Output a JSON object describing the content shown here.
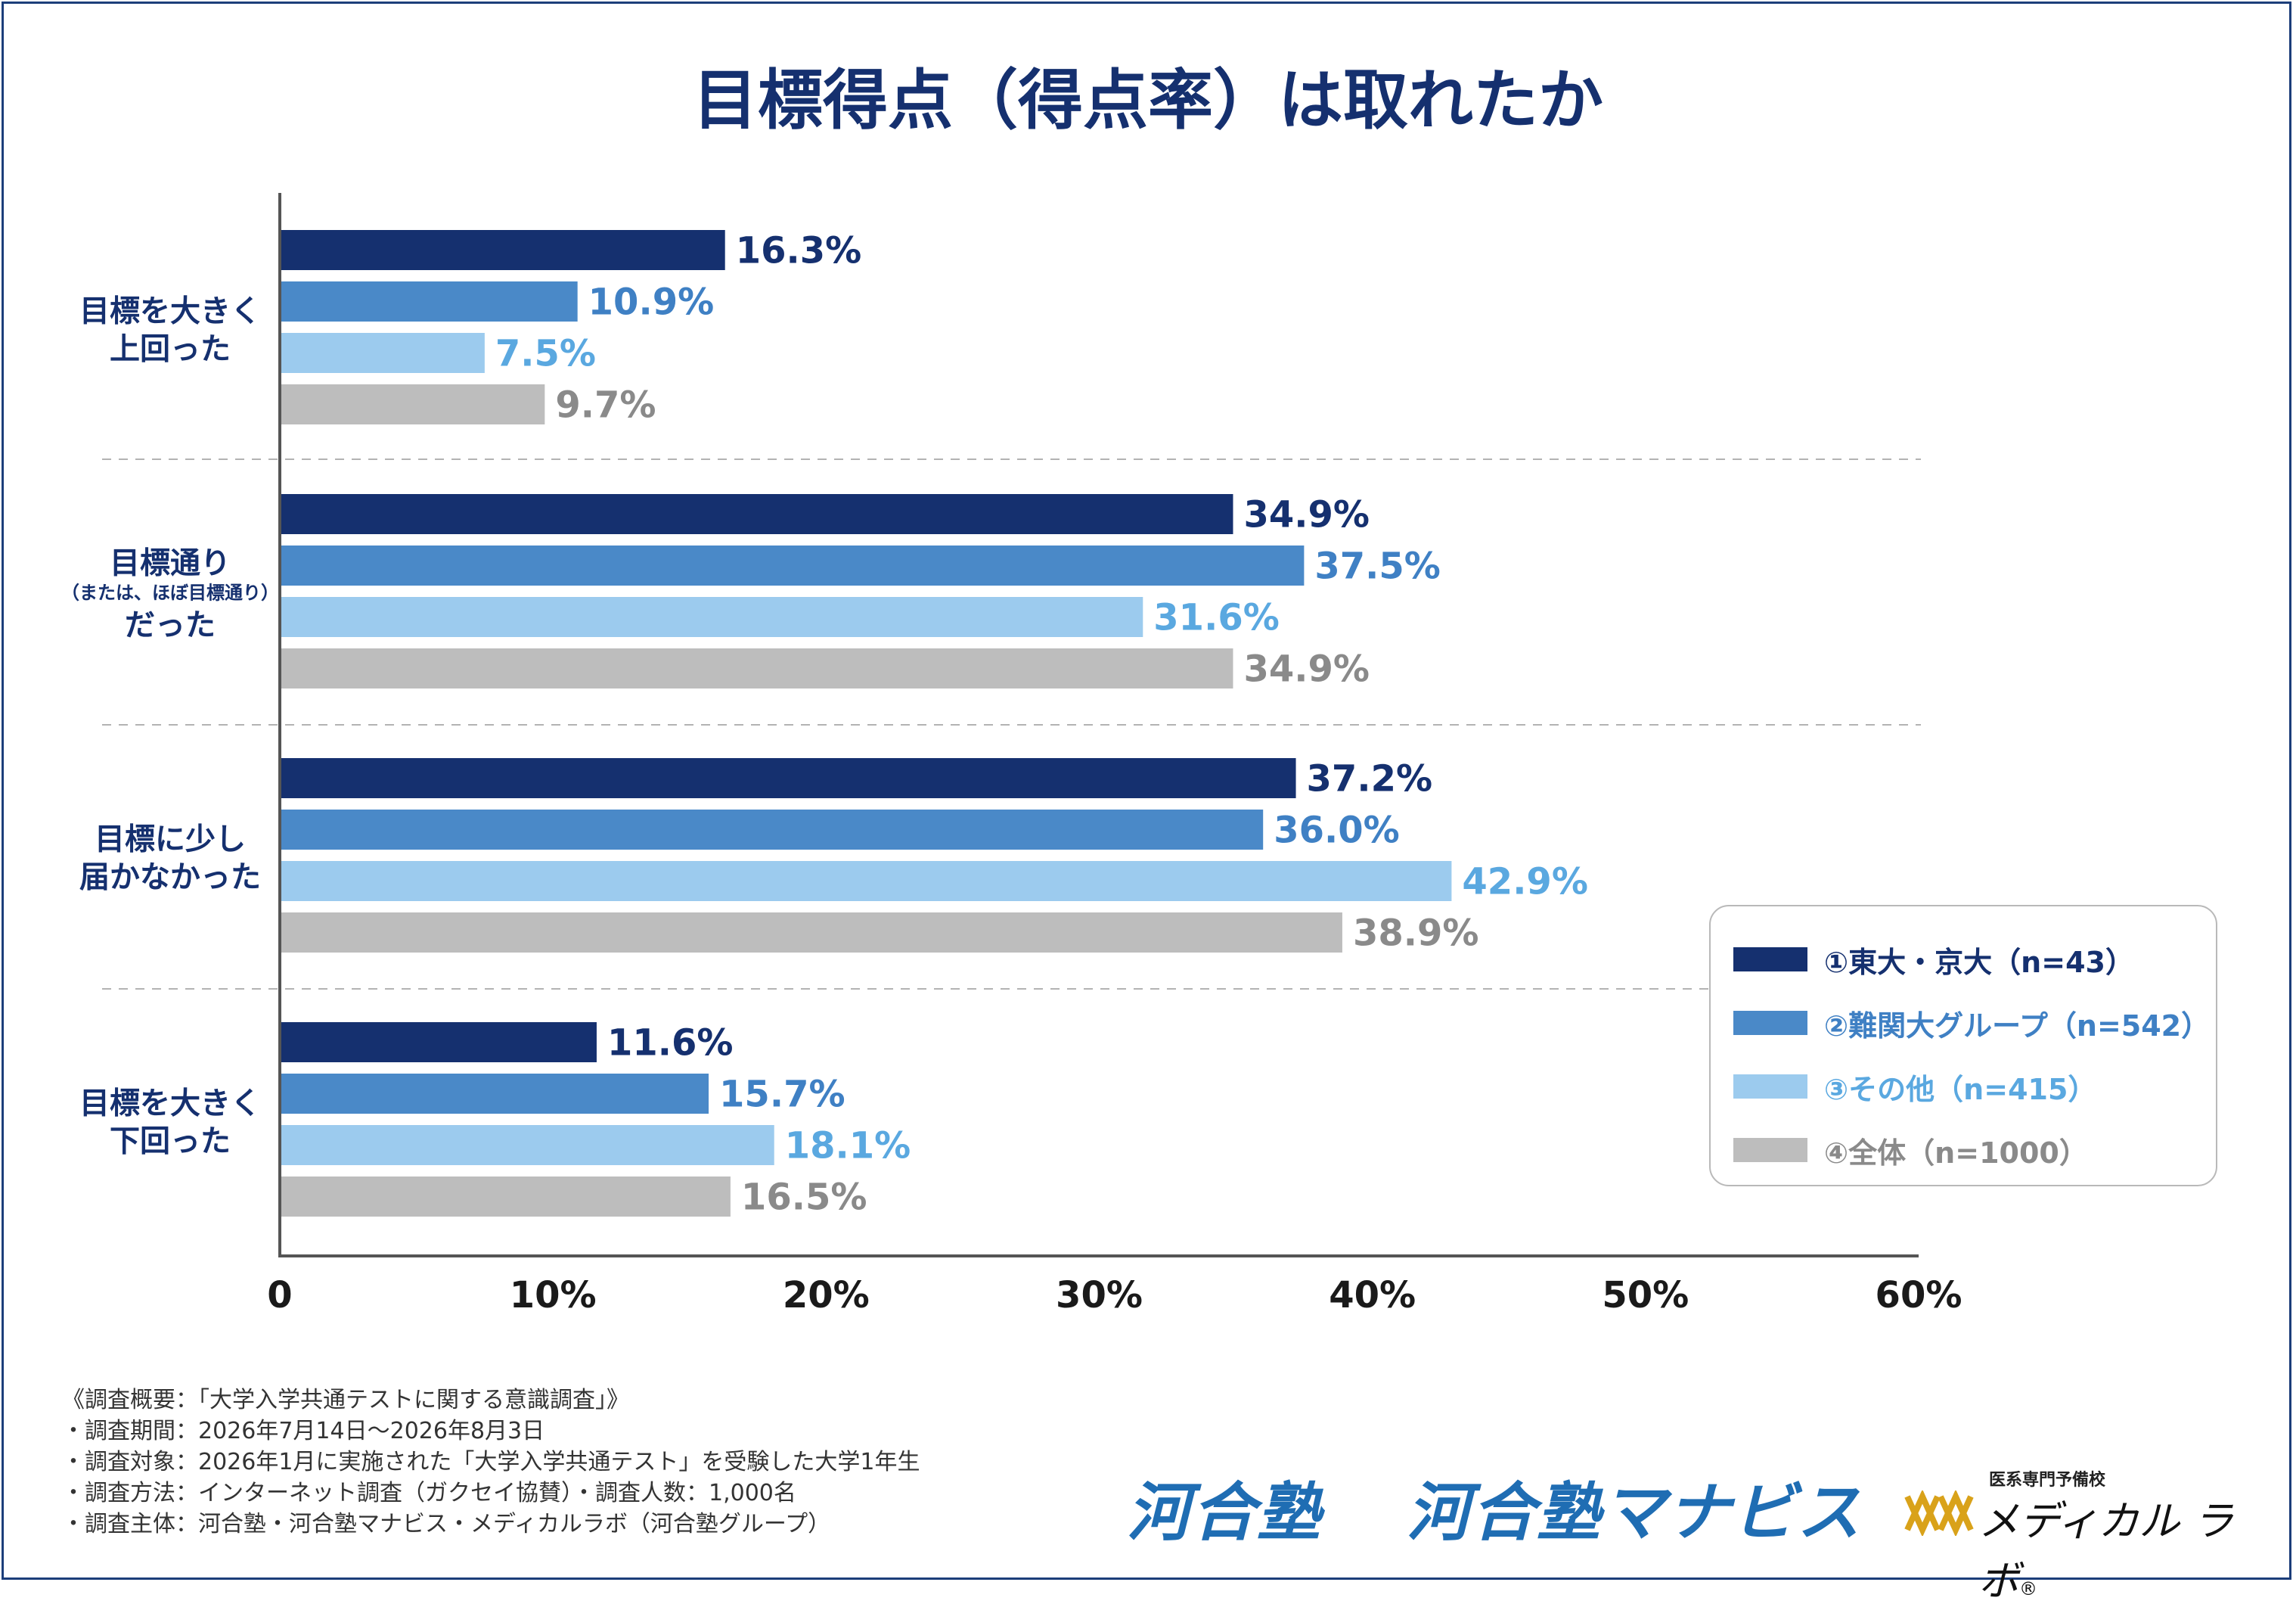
{
  "title": "目標得点（得点率）は取れたか",
  "chart_data": {
    "type": "bar",
    "orientation": "horizontal",
    "categories": [
      [
        "目標を大きく",
        "上回った"
      ],
      [
        "目標通り",
        "（または、ほぼ目標通り）",
        "だった"
      ],
      [
        "目標に少し",
        "届かなかった"
      ],
      [
        "目標を大きく",
        "下回った"
      ]
    ],
    "series": [
      {
        "name": "①東大・京大（n=43）",
        "values": [
          16.3,
          34.9,
          37.2,
          11.6
        ],
        "color": "#15306f"
      },
      {
        "name": "②難関大グループ（n=542）",
        "values": [
          10.9,
          37.5,
          36.0,
          15.7
        ],
        "color": "#4a89c8"
      },
      {
        "name": "③その他（n=415）",
        "values": [
          7.5,
          31.6,
          42.9,
          18.1
        ],
        "color": "#9ccbee"
      },
      {
        "name": "④全体（n=1000）",
        "values": [
          9.7,
          34.9,
          38.9,
          16.5
        ],
        "color": "#bdbdbd"
      }
    ],
    "label_colors": [
      "#15306f",
      "#3f80c4",
      "#5aa8e0",
      "#8a8a8a"
    ],
    "xlim": [
      0,
      60
    ],
    "xticks": [
      "0",
      "10%",
      "20%",
      "30%",
      "40%",
      "50%",
      "60%"
    ],
    "legend_position": "bottom-right",
    "grid": false
  },
  "notes": [
    "《調査概要：「大学入学共通テストに関する意識調査」》",
    "・調査期間：2026年7月14日～2026年8月3日",
    "・調査対象：2026年1月に実施された「大学入学共通テスト」を受験した大学1年生",
    "・調査方法：インターネット調査（ガクセイ協賛）・調査人数：1,000名",
    "・調査主体：河合塾・河合塾マナビス・メディカルラボ（河合塾グループ）"
  ],
  "logos": {
    "kawaijuku": "河合塾",
    "manabis": "河合塾マナビス",
    "medical_sub": "医系専門予備校",
    "medical_main": "メディカル ラボ",
    "registered": "®"
  }
}
